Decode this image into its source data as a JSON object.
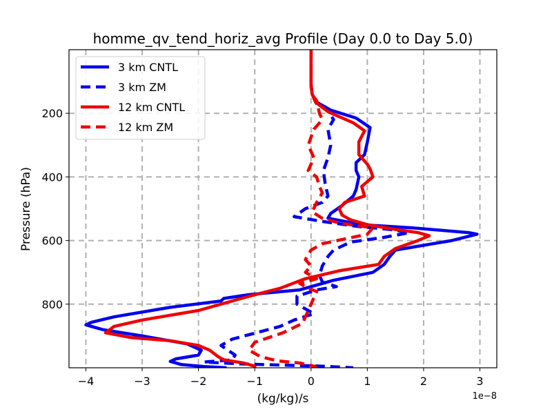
{
  "chart_data": {
    "type": "line",
    "title": "homme_qv_tend_horiz_avg Profile (Day 0.0 to Day 5.0)",
    "xlabel": "(kg/kg)/s",
    "ylabel": "Pressure (hPa)",
    "x_offset_label": "1e−8",
    "xlim": [
      -4.3,
      3.3
    ],
    "ylim": [
      1000,
      0
    ],
    "x_ticks": [
      -4,
      -3,
      -2,
      -1,
      0,
      1,
      2,
      3
    ],
    "x_tick_labels": [
      "−4",
      "−3",
      "−2",
      "−1",
      "0",
      "1",
      "2",
      "3"
    ],
    "y_ticks": [
      200,
      400,
      600,
      800
    ],
    "y_tick_labels": [
      "200",
      "400",
      "600",
      "800"
    ],
    "grid": true,
    "legend_position": "upper-left",
    "series": [
      {
        "name": "3 km CNTL",
        "color": "#0000ee",
        "dash": "solid",
        "points": [
          [
            0,
            0
          ],
          [
            0,
            60
          ],
          [
            0,
            110
          ],
          [
            0.02,
            140
          ],
          [
            0.1,
            165
          ],
          [
            0.35,
            190
          ],
          [
            0.8,
            215
          ],
          [
            1.05,
            245
          ],
          [
            1.0,
            290
          ],
          [
            0.95,
            330
          ],
          [
            0.8,
            355
          ],
          [
            0.8,
            380
          ],
          [
            0.85,
            400
          ],
          [
            0.8,
            440
          ],
          [
            0.75,
            460
          ],
          [
            0.55,
            490
          ],
          [
            0.35,
            515
          ],
          [
            0.3,
            530
          ],
          [
            0.9,
            550
          ],
          [
            1.8,
            560
          ],
          [
            2.8,
            575
          ],
          [
            2.95,
            580
          ],
          [
            2.5,
            600
          ],
          [
            2.0,
            615
          ],
          [
            1.5,
            630
          ],
          [
            1.4,
            650
          ],
          [
            1.3,
            675
          ],
          [
            1.1,
            700
          ],
          [
            0.4,
            725
          ],
          [
            -0.2,
            755
          ],
          [
            -1.1,
            770
          ],
          [
            -1.55,
            782
          ],
          [
            -1.6,
            790
          ],
          [
            -2.5,
            810
          ],
          [
            -3.5,
            840
          ],
          [
            -3.9,
            857
          ],
          [
            -4.0,
            865
          ],
          [
            -3.7,
            880
          ],
          [
            -3.0,
            900
          ],
          [
            -2.2,
            925
          ],
          [
            -1.95,
            945
          ],
          [
            -2.0,
            960
          ],
          [
            -2.4,
            972
          ],
          [
            -2.5,
            980
          ],
          [
            -2.3,
            990
          ],
          [
            -1.9,
            996
          ],
          [
            -1.5,
            1000
          ]
        ]
      },
      {
        "name": "3 km ZM",
        "color": "#0000ee",
        "dash": "dash",
        "points": [
          [
            0,
            0
          ],
          [
            0,
            60
          ],
          [
            0,
            110
          ],
          [
            0.02,
            140
          ],
          [
            0.1,
            170
          ],
          [
            0.3,
            190
          ],
          [
            0.4,
            220
          ],
          [
            0.3,
            250
          ],
          [
            0.35,
            300
          ],
          [
            0.3,
            340
          ],
          [
            0.22,
            380
          ],
          [
            0.25,
            420
          ],
          [
            0.3,
            460
          ],
          [
            0.2,
            480
          ],
          [
            -0.1,
            500
          ],
          [
            -0.3,
            525
          ],
          [
            0.2,
            540
          ],
          [
            0.8,
            555
          ],
          [
            1.4,
            565
          ],
          [
            1.75,
            575
          ],
          [
            1.3,
            590
          ],
          [
            0.7,
            605
          ],
          [
            0.4,
            630
          ],
          [
            0.3,
            650
          ],
          [
            0.2,
            680
          ],
          [
            0.15,
            710
          ],
          [
            0.2,
            730
          ],
          [
            0.45,
            745
          ],
          [
            0.1,
            755
          ],
          [
            -0.25,
            775
          ],
          [
            -0.25,
            800
          ],
          [
            0.05,
            830
          ],
          [
            -0.3,
            850
          ],
          [
            -0.55,
            870
          ],
          [
            -1.4,
            910
          ],
          [
            -1.6,
            930
          ],
          [
            -1.35,
            960
          ],
          [
            -1.4,
            975
          ],
          [
            -1.9,
            982
          ],
          [
            -1.2,
            988
          ],
          [
            0.2,
            995
          ],
          [
            0.75,
            1000
          ]
        ]
      },
      {
        "name": "12 km CNTL",
        "color": "#ee0000",
        "dash": "solid",
        "points": [
          [
            0,
            0
          ],
          [
            0,
            60
          ],
          [
            0,
            110
          ],
          [
            0.02,
            140
          ],
          [
            0.08,
            165
          ],
          [
            0.3,
            195
          ],
          [
            0.75,
            230
          ],
          [
            0.95,
            255
          ],
          [
            0.85,
            290
          ],
          [
            0.85,
            330
          ],
          [
            1.0,
            360
          ],
          [
            1.05,
            375
          ],
          [
            1.1,
            400
          ],
          [
            0.9,
            430
          ],
          [
            0.95,
            460
          ],
          [
            0.6,
            480
          ],
          [
            0.5,
            500
          ],
          [
            0.55,
            520
          ],
          [
            0.7,
            535
          ],
          [
            1.0,
            550
          ],
          [
            1.5,
            565
          ],
          [
            1.9,
            575
          ],
          [
            2.1,
            585
          ],
          [
            1.9,
            600
          ],
          [
            1.5,
            625
          ],
          [
            1.3,
            650
          ],
          [
            1.2,
            675
          ],
          [
            0.5,
            695
          ],
          [
            -0.1,
            720
          ],
          [
            -0.55,
            750
          ],
          [
            -1.1,
            775
          ],
          [
            -2.0,
            820
          ],
          [
            -3.0,
            850
          ],
          [
            -3.5,
            870
          ],
          [
            -3.65,
            890
          ],
          [
            -3.2,
            905
          ],
          [
            -2.5,
            915
          ],
          [
            -2.0,
            930
          ],
          [
            -1.8,
            945
          ],
          [
            -1.65,
            965
          ],
          [
            -1.55,
            975
          ],
          [
            -1.2,
            985
          ],
          [
            -1.0,
            995
          ],
          [
            -1.0,
            1000
          ]
        ]
      },
      {
        "name": "12 km ZM",
        "color": "#ee0000",
        "dash": "dash",
        "points": [
          [
            0,
            0
          ],
          [
            0,
            60
          ],
          [
            0,
            110
          ],
          [
            0.01,
            140
          ],
          [
            0.1,
            160
          ],
          [
            0.15,
            200
          ],
          [
            0.2,
            220
          ],
          [
            0.05,
            250
          ],
          [
            -0.05,
            300
          ],
          [
            0.05,
            340
          ],
          [
            -0.05,
            380
          ],
          [
            0.1,
            400
          ],
          [
            0.15,
            430
          ],
          [
            0.2,
            450
          ],
          [
            0.1,
            480
          ],
          [
            0.02,
            510
          ],
          [
            0.2,
            530
          ],
          [
            0.5,
            545
          ],
          [
            1.1,
            560
          ],
          [
            1.0,
            580
          ],
          [
            0.6,
            595
          ],
          [
            0.2,
            610
          ],
          [
            0.0,
            630
          ],
          [
            -0.1,
            660
          ],
          [
            0.0,
            680
          ],
          [
            -0.1,
            700
          ],
          [
            0.1,
            720
          ],
          [
            -0.2,
            735
          ],
          [
            -0.05,
            750
          ],
          [
            0.1,
            760
          ],
          [
            0.0,
            800
          ],
          [
            -0.1,
            840
          ],
          [
            -0.15,
            860
          ],
          [
            -0.5,
            890
          ],
          [
            -1.0,
            920
          ],
          [
            -1.1,
            945
          ],
          [
            -0.9,
            965
          ],
          [
            -0.6,
            978
          ],
          [
            -0.2,
            985
          ],
          [
            0.05,
            995
          ],
          [
            0.1,
            1000
          ]
        ]
      }
    ]
  }
}
